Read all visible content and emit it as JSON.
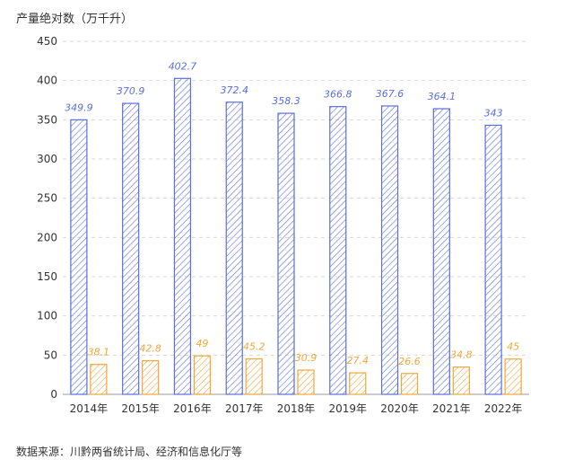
{
  "unit_label": "产量绝对数（万千升）",
  "source": "数据来源：川黔两省统计局、经济和信息化厅等",
  "colors": {
    "series1": "#5b6fe0",
    "series2": "#f3a63b",
    "grid": "#d9d9d9",
    "axis": "#999999"
  },
  "chart_data": {
    "type": "bar",
    "categories": [
      "2014年",
      "2015年",
      "2016年",
      "2017年",
      "2018年",
      "2019年",
      "2020年",
      "2021年",
      "2022年"
    ],
    "series": [
      {
        "values": [
          349.9,
          370.9,
          402.7,
          372.4,
          358.3,
          366.8,
          367.6,
          364.1,
          343
        ],
        "labels": [
          "349.9",
          "370.9",
          "402.7",
          "372.4",
          "358.3",
          "366.8",
          "367.6",
          "364.1",
          "343"
        ]
      },
      {
        "values": [
          38.1,
          42.8,
          49,
          45.2,
          30.9,
          27.4,
          26.6,
          34.8,
          45
        ],
        "labels": [
          "38.1",
          "42.8",
          "49",
          "45.2",
          "30.9",
          "27.4",
          "26.6",
          "34.8",
          "45"
        ]
      }
    ],
    "ylim": [
      0,
      450
    ],
    "yticks": [
      "0",
      "50",
      "100",
      "150",
      "200",
      "250",
      "300",
      "350",
      "400",
      "450"
    ],
    "grid": true,
    "title": "",
    "xlabel": "",
    "ylabel": ""
  }
}
